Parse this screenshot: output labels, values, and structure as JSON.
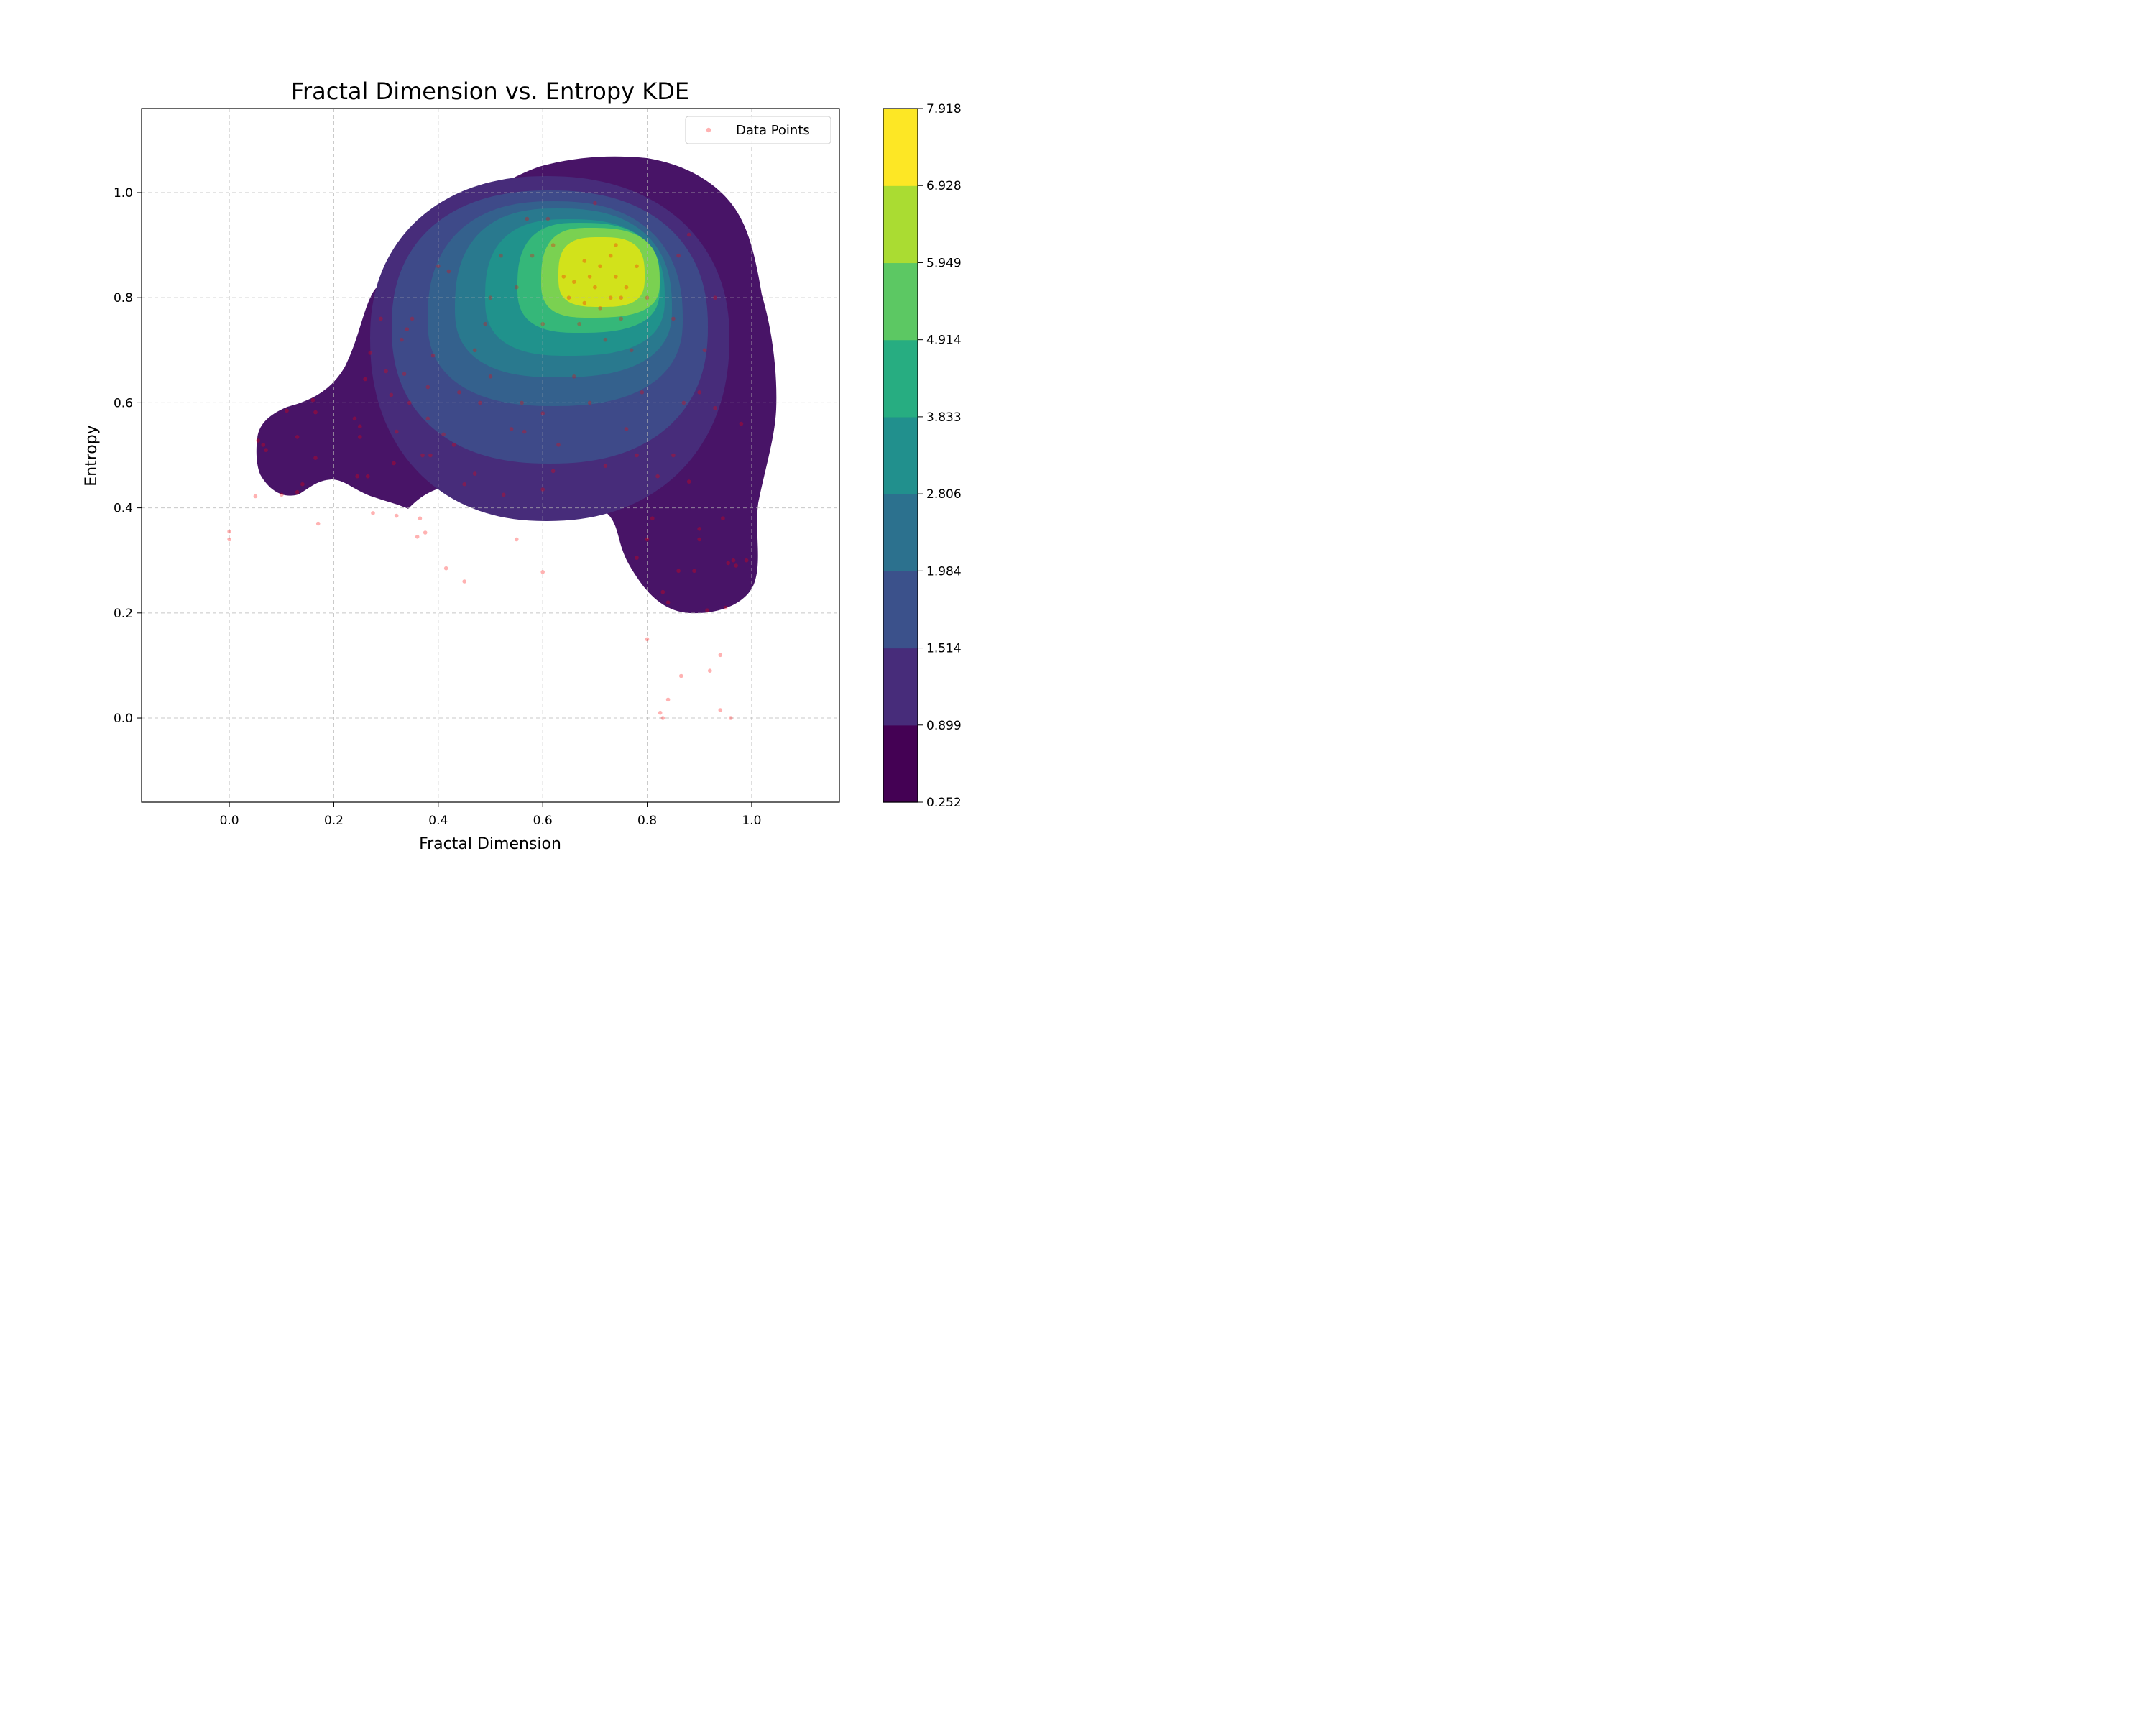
{
  "chart_data": {
    "type": "contourf-kde-with-scatter",
    "title": "Fractal Dimension vs. Entropy KDE",
    "xlabel": "Fractal Dimension",
    "ylabel": "Entropy",
    "xlim": [
      -0.168,
      1.168
    ],
    "ylim": [
      -0.16,
      1.16
    ],
    "xticks": [
      "0.0",
      "0.2",
      "0.4",
      "0.6",
      "0.8",
      "1.0"
    ],
    "yticks": [
      "0.0",
      "0.2",
      "0.4",
      "0.6",
      "0.8",
      "1.0"
    ],
    "grid": true,
    "grid_style": "dashed",
    "legend": {
      "position": "top-right",
      "entries": [
        "Data Points"
      ]
    },
    "colormap": "viridis",
    "colorbar_levels": [
      "0.252",
      "0.899",
      "1.514",
      "1.984",
      "2.806",
      "3.833",
      "4.914",
      "5.949",
      "6.928",
      "7.918"
    ],
    "colorbar_colors": [
      "#440154",
      "#472c7a",
      "#3b518b",
      "#2c718e",
      "#21908d",
      "#27ad81",
      "#5cc863",
      "#aadc32",
      "#fde725"
    ],
    "fill_colors": [
      "#481467",
      "#472c7a",
      "#3e4a89",
      "#34618d",
      "#29798e",
      "#20928c",
      "#35b779",
      "#7ad151",
      "#d2e21b"
    ],
    "kde_peak": {
      "x": 0.72,
      "y": 0.83
    },
    "point_color": "#ff0000",
    "point_alpha": 0.3,
    "points": [
      [
        0.0,
        0.34
      ],
      [
        0.0,
        0.355
      ],
      [
        0.05,
        0.422
      ],
      [
        0.055,
        0.528
      ],
      [
        0.065,
        0.52
      ],
      [
        0.07,
        0.51
      ],
      [
        0.1,
        0.425
      ],
      [
        0.11,
        0.585
      ],
      [
        0.13,
        0.43
      ],
      [
        0.13,
        0.535
      ],
      [
        0.14,
        0.445
      ],
      [
        0.16,
        0.605
      ],
      [
        0.165,
        0.582
      ],
      [
        0.165,
        0.495
      ],
      [
        0.17,
        0.37
      ],
      [
        0.24,
        0.57
      ],
      [
        0.245,
        0.46
      ],
      [
        0.25,
        0.535
      ],
      [
        0.25,
        0.555
      ],
      [
        0.26,
        0.645
      ],
      [
        0.265,
        0.46
      ],
      [
        0.27,
        0.695
      ],
      [
        0.275,
        0.39
      ],
      [
        0.29,
        0.76
      ],
      [
        0.3,
        0.66
      ],
      [
        0.31,
        0.615
      ],
      [
        0.315,
        0.485
      ],
      [
        0.32,
        0.385
      ],
      [
        0.32,
        0.545
      ],
      [
        0.33,
        0.72
      ],
      [
        0.335,
        0.655
      ],
      [
        0.34,
        0.74
      ],
      [
        0.345,
        0.6
      ],
      [
        0.35,
        0.76
      ],
      [
        0.36,
        0.345
      ],
      [
        0.365,
        0.38
      ],
      [
        0.37,
        0.5
      ],
      [
        0.375,
        0.353
      ],
      [
        0.38,
        0.57
      ],
      [
        0.38,
        0.63
      ],
      [
        0.385,
        0.5
      ],
      [
        0.39,
        0.69
      ],
      [
        0.4,
        0.86
      ],
      [
        0.41,
        0.54
      ],
      [
        0.415,
        0.285
      ],
      [
        0.42,
        0.85
      ],
      [
        0.43,
        0.52
      ],
      [
        0.44,
        0.62
      ],
      [
        0.45,
        0.445
      ],
      [
        0.45,
        0.26
      ],
      [
        0.47,
        0.465
      ],
      [
        0.48,
        0.6
      ],
      [
        0.49,
        0.75
      ],
      [
        0.5,
        0.8
      ],
      [
        0.5,
        0.65
      ],
      [
        0.52,
        0.88
      ],
      [
        0.525,
        0.425
      ],
      [
        0.54,
        0.55
      ],
      [
        0.55,
        0.34
      ],
      [
        0.56,
        0.6
      ],
      [
        0.565,
        0.545
      ],
      [
        0.57,
        0.95
      ],
      [
        0.58,
        0.88
      ],
      [
        0.6,
        0.278
      ],
      [
        0.6,
        0.58
      ],
      [
        0.6,
        0.435
      ],
      [
        0.61,
        0.95
      ],
      [
        0.62,
        0.47
      ],
      [
        0.62,
        0.9
      ],
      [
        0.63,
        0.52
      ],
      [
        0.64,
        0.84
      ],
      [
        0.65,
        0.8
      ],
      [
        0.66,
        0.65
      ],
      [
        0.67,
        0.75
      ],
      [
        0.68,
        0.87
      ],
      [
        0.69,
        0.6
      ],
      [
        0.7,
        0.98
      ],
      [
        0.7,
        0.82
      ],
      [
        0.71,
        0.86
      ],
      [
        0.72,
        0.48
      ],
      [
        0.73,
        0.88
      ],
      [
        0.74,
        0.84
      ],
      [
        0.74,
        0.9
      ],
      [
        0.75,
        0.8
      ],
      [
        0.76,
        0.55
      ],
      [
        0.77,
        0.7
      ],
      [
        0.78,
        0.5
      ],
      [
        0.78,
        0.305
      ],
      [
        0.79,
        0.62
      ],
      [
        0.8,
        0.15
      ],
      [
        0.8,
        0.34
      ],
      [
        0.81,
        0.38
      ],
      [
        0.82,
        0.46
      ],
      [
        0.825,
        0.01
      ],
      [
        0.83,
        0.0
      ],
      [
        0.83,
        0.24
      ],
      [
        0.84,
        0.035
      ],
      [
        0.84,
        0.22
      ],
      [
        0.85,
        0.5
      ],
      [
        0.86,
        0.28
      ],
      [
        0.865,
        0.08
      ],
      [
        0.87,
        0.6
      ],
      [
        0.88,
        0.45
      ],
      [
        0.89,
        0.28
      ],
      [
        0.9,
        0.34
      ],
      [
        0.9,
        0.36
      ],
      [
        0.91,
        0.7
      ],
      [
        0.915,
        0.205
      ],
      [
        0.92,
        0.09
      ],
      [
        0.93,
        0.59
      ],
      [
        0.94,
        0.12
      ],
      [
        0.94,
        0.015
      ],
      [
        0.945,
        0.38
      ],
      [
        0.95,
        0.21
      ],
      [
        0.955,
        0.295
      ],
      [
        0.96,
        0.0
      ],
      [
        0.965,
        0.3
      ],
      [
        0.97,
        0.29
      ],
      [
        0.98,
        0.56
      ],
      [
        0.99,
        0.3
      ],
      [
        0.76,
        0.82
      ],
      [
        0.73,
        0.8
      ],
      [
        0.69,
        0.84
      ],
      [
        0.71,
        0.78
      ],
      [
        0.66,
        0.83
      ],
      [
        0.78,
        0.86
      ],
      [
        0.8,
        0.8
      ],
      [
        0.75,
        0.76
      ],
      [
        0.68,
        0.79
      ],
      [
        0.72,
        0.72
      ],
      [
        0.85,
        0.76
      ],
      [
        0.86,
        0.88
      ],
      [
        0.6,
        0.75
      ],
      [
        0.55,
        0.82
      ],
      [
        0.47,
        0.7
      ],
      [
        0.9,
        0.62
      ],
      [
        0.93,
        0.8
      ],
      [
        0.88,
        0.92
      ]
    ]
  }
}
